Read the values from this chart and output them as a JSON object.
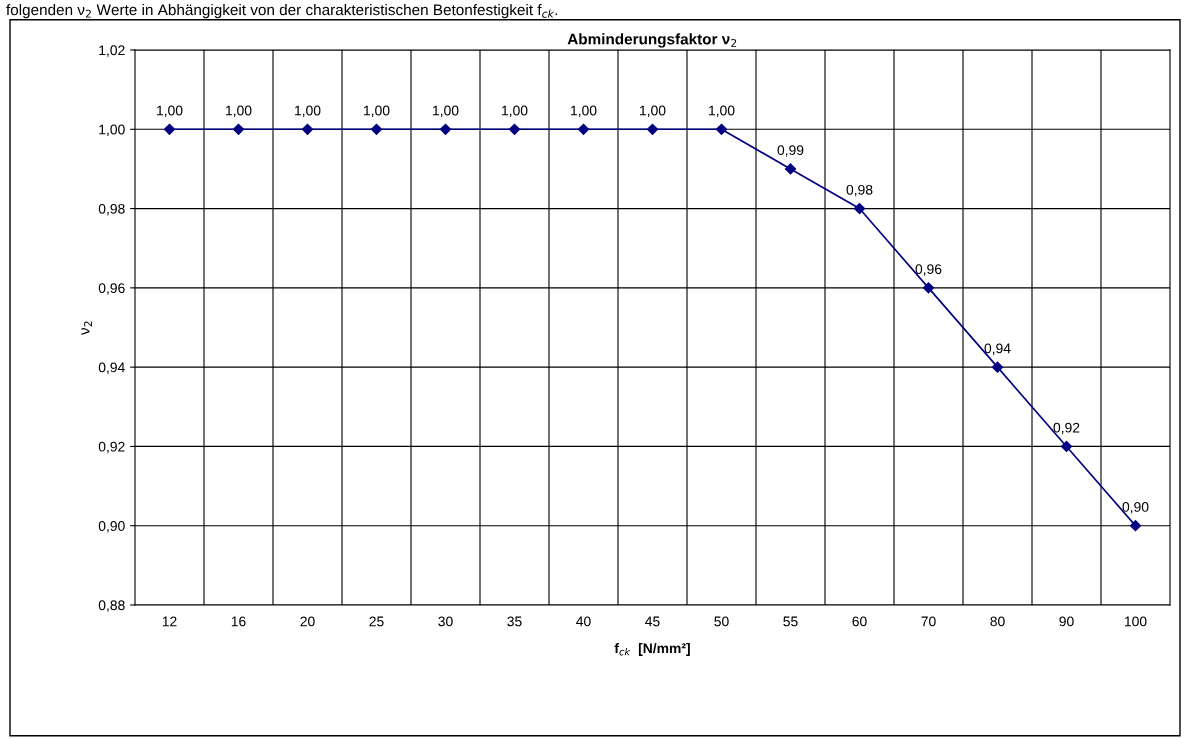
{
  "chart_data": {
    "type": "line",
    "title": "Abminderungsfaktor ν$_{2}$",
    "xlabel": "f$_{ck}$  [N/mm²]",
    "ylabel": "ν$_{2}$",
    "annotations": [
      "folgenden ν$_{2}$ Werte in Abhängigkeit von der charakteristischen Betonfestigkeit f$_{ck}$."
    ],
    "categories": [
      "12",
      "16",
      "20",
      "25",
      "30",
      "35",
      "40",
      "45",
      "50",
      "55",
      "60",
      "70",
      "80",
      "90",
      "100"
    ],
    "series": [
      {
        "color": "#000080",
        "values": [
          1.0,
          1.0,
          1.0,
          1.0,
          1.0,
          1.0,
          1.0,
          1.0,
          1.0,
          0.99,
          0.98,
          0.96,
          0.94,
          0.92,
          0.9
        ],
        "value_labels": [
          "1,00",
          "1,00",
          "1,00",
          "1,00",
          "1,00",
          "1,00",
          "1,00",
          "1,00",
          "1,00",
          "0,99",
          "0,98",
          "0,96",
          "0,94",
          "0,92",
          "0,90"
        ]
      }
    ],
    "ylim": [
      0.88,
      1.02
    ],
    "yticks": [
      {
        "value": 0.88,
        "label": "0,88"
      },
      {
        "value": 0.9,
        "label": "0,90"
      },
      {
        "value": 0.92,
        "label": "0,92"
      },
      {
        "value": 0.94,
        "label": "0,94"
      },
      {
        "value": 0.96,
        "label": "0,96"
      },
      {
        "value": 0.98,
        "label": "0,98"
      },
      {
        "value": 1.0,
        "label": "1,00"
      },
      {
        "value": 1.02,
        "label": "1,02"
      }
    ],
    "grid": true,
    "marker": "diamond",
    "line_style": "solid",
    "legend": false
  }
}
